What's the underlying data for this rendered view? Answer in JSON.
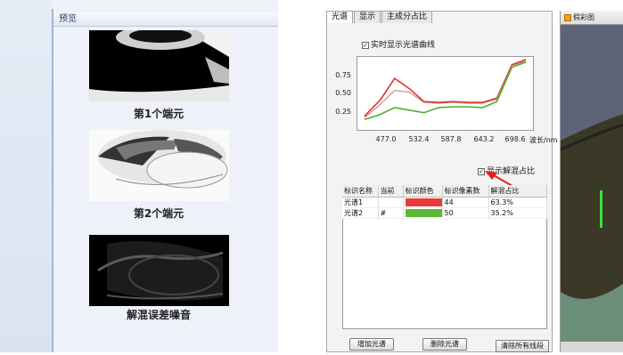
{
  "preview": {
    "title": "预览",
    "items": [
      {
        "label": "第1个端元"
      },
      {
        "label": "第2个端元"
      },
      {
        "label": "解混误差噪音"
      }
    ]
  },
  "tabs": [
    {
      "label": "光谱",
      "active": true
    },
    {
      "label": "显示",
      "active": false
    },
    {
      "label": "主成分占比",
      "active": false
    }
  ],
  "options": {
    "realtime_curve": "实时显示光谱曲线",
    "show_ratio": "显示解混占比"
  },
  "chart_data": {
    "type": "line",
    "x": [
      420,
      450,
      477,
      505,
      532.4,
      560,
      587.8,
      615,
      643.2,
      670,
      698.6,
      725
    ],
    "xticks": [
      "477.0",
      "532.4",
      "587.8",
      "643.2",
      "698.6"
    ],
    "yticks": [
      "0.75",
      "0.50",
      "0.25"
    ],
    "xlabel": "波长/nm",
    "ylim": [
      0.1,
      0.95
    ],
    "xlim": [
      410,
      735
    ],
    "series": [
      {
        "color": "#e03030",
        "values": [
          0.26,
          0.45,
          0.7,
          0.58,
          0.43,
          0.42,
          0.43,
          0.42,
          0.42,
          0.47,
          0.86,
          0.92
        ]
      },
      {
        "color": "#c87474",
        "values": [
          0.24,
          0.4,
          0.56,
          0.54,
          0.42,
          0.41,
          0.42,
          0.41,
          0.41,
          0.46,
          0.85,
          0.9
        ]
      },
      {
        "color": "#4caf30",
        "values": [
          0.22,
          0.28,
          0.36,
          0.33,
          0.3,
          0.36,
          0.37,
          0.37,
          0.36,
          0.43,
          0.83,
          0.89
        ]
      }
    ]
  },
  "table": {
    "headers": [
      "标识名称",
      "当前",
      "标识颜色",
      "标识像素数",
      "解混占比"
    ],
    "rows": [
      {
        "name": "光谱1",
        "current": "",
        "color": "#e83a3a",
        "pixels": "44",
        "ratio": "63.3%"
      },
      {
        "name": "光谱2",
        "current": "#",
        "color": "#5cb83a",
        "pixels": "50",
        "ratio": "35.2%"
      }
    ]
  },
  "buttons": {
    "add": "增加光谱",
    "delete": "删除光谱",
    "clear": "清除所有线段"
  },
  "right_panel": {
    "title": "假彩图"
  }
}
